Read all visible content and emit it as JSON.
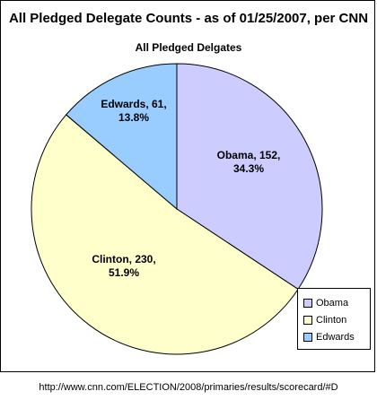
{
  "chart_data": {
    "type": "pie",
    "title": "All Pledged Delegate Counts -  as of 01/25/2007, per CNN",
    "subtitle": "All Pledged Delgates",
    "slices": [
      {
        "name": "Obama",
        "value": 152,
        "percent": 34.3,
        "label_line1": "Obama, 152,",
        "label_line2": "34.3%",
        "color": "#ccccff"
      },
      {
        "name": "Clinton",
        "value": 230,
        "percent": 51.9,
        "label_line1": "Clinton, 230,",
        "label_line2": "51.9%",
        "color": "#ffffcc"
      },
      {
        "name": "Edwards",
        "value": 61,
        "percent": 13.8,
        "label_line1": "Edwards, 61,",
        "label_line2": "13.8%",
        "color": "#99ccff"
      }
    ],
    "legend": [
      "Obama",
      "Clinton",
      "Edwards"
    ],
    "legend_position": "bottom-right"
  },
  "source": "http://www.cnn.com/ELECTION/2008/primaries/results/scorecard/#D"
}
